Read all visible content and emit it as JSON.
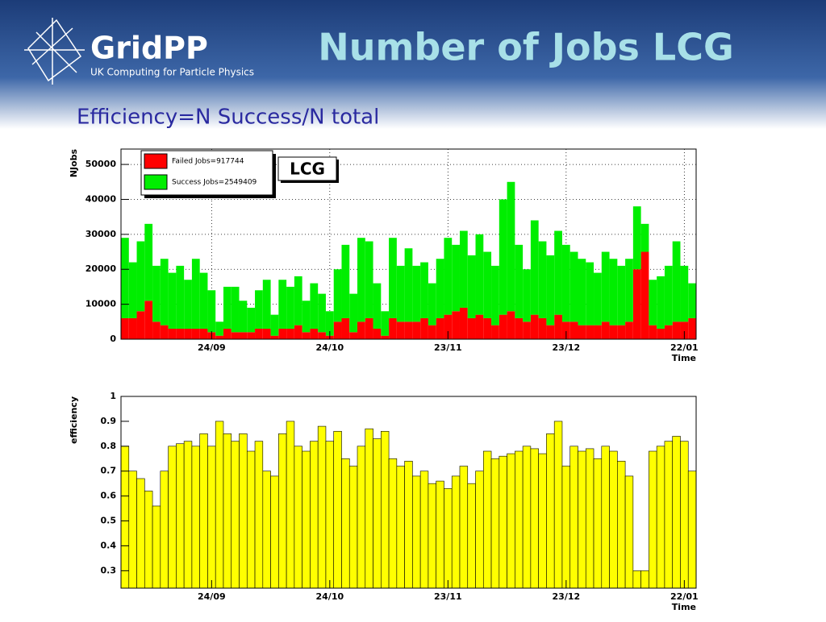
{
  "header": {
    "logo": "GridPP",
    "tagline": "UK Computing for Particle Physics",
    "title": "Number of Jobs LCG",
    "subtitle": "Efficiency=N Success/N total"
  },
  "chart_data": [
    {
      "type": "histogram",
      "stacked": true,
      "bins": [
        0,
        2,
        4,
        6,
        8,
        10,
        12,
        14,
        16,
        18,
        20,
        22,
        24,
        26,
        28,
        30,
        32,
        34,
        36,
        38,
        40,
        42,
        44,
        46,
        48,
        50,
        52,
        54,
        56,
        58,
        60,
        62,
        64,
        66,
        68,
        70,
        72,
        74,
        76,
        78,
        80,
        82,
        84,
        86,
        88,
        90,
        92,
        94,
        96,
        98,
        100,
        102,
        104,
        106,
        108,
        110,
        112,
        114,
        116,
        118,
        120,
        122,
        124,
        126,
        128,
        130,
        132,
        134,
        136,
        138,
        140,
        142,
        144,
        146
      ],
      "series": [
        {
          "name": "Failed Jobs=917744",
          "color": "#ff0000",
          "values": [
            6000,
            6000,
            8000,
            11000,
            5000,
            4000,
            3000,
            3000,
            3000,
            3000,
            3000,
            2000,
            1000,
            3000,
            2000,
            2000,
            2000,
            3000,
            3000,
            1000,
            3000,
            3000,
            4000,
            2000,
            3000,
            2000,
            1000,
            5000,
            6000,
            2000,
            5000,
            6000,
            3000,
            1000,
            6000,
            5000,
            5000,
            5000,
            6000,
            4000,
            6000,
            7000,
            8000,
            9000,
            6000,
            7000,
            6000,
            4000,
            7000,
            8000,
            6000,
            5000,
            7000,
            6000,
            4000,
            7000,
            5000,
            5000,
            4000,
            4000,
            4000,
            5000,
            4000,
            4000,
            5000,
            20000,
            25000,
            4000,
            3000,
            4000,
            5000,
            5000,
            6000
          ]
        },
        {
          "name": "Success Jobs=2549409",
          "color": "#00ee00",
          "values": [
            23000,
            16000,
            20000,
            22000,
            16000,
            19000,
            16000,
            18000,
            14000,
            20000,
            16000,
            12000,
            4000,
            12000,
            13000,
            9000,
            7000,
            11000,
            14000,
            6000,
            14000,
            12000,
            14000,
            9000,
            13000,
            11000,
            7000,
            15000,
            21000,
            11000,
            24000,
            22000,
            13000,
            7000,
            23000,
            16000,
            21000,
            16000,
            16000,
            12000,
            17000,
            22000,
            19000,
            22000,
            18000,
            23000,
            19000,
            17000,
            33000,
            37000,
            21000,
            15000,
            27000,
            22000,
            20000,
            24000,
            22000,
            20000,
            19000,
            18000,
            15000,
            20000,
            19000,
            17000,
            18000,
            18000,
            8000,
            13000,
            15000,
            17000,
            23000,
            16000,
            10000
          ]
        }
      ],
      "xlim": [
        0,
        146
      ],
      "xticks": [
        {
          "value": 23,
          "label": "24/09"
        },
        {
          "value": 53,
          "label": "24/10"
        },
        {
          "value": 83,
          "label": "23/11"
        },
        {
          "value": 113,
          "label": "23/12"
        },
        {
          "value": 143,
          "label": "22/01"
        }
      ],
      "ylim": [
        0,
        54400
      ],
      "yticks": [
        0,
        10000,
        20000,
        30000,
        40000,
        50000
      ],
      "xlabel": "Time",
      "ylabel": "NJobs",
      "annotation": "LCG",
      "grid": true
    },
    {
      "type": "histogram",
      "bins": [
        0,
        2,
        4,
        6,
        8,
        10,
        12,
        14,
        16,
        18,
        20,
        22,
        24,
        26,
        28,
        30,
        32,
        34,
        36,
        38,
        40,
        42,
        44,
        46,
        48,
        50,
        52,
        54,
        56,
        58,
        60,
        62,
        64,
        66,
        68,
        70,
        72,
        74,
        76,
        78,
        80,
        82,
        84,
        86,
        88,
        90,
        92,
        94,
        96,
        98,
        100,
        102,
        104,
        106,
        108,
        110,
        112,
        114,
        116,
        118,
        120,
        122,
        124,
        126,
        128,
        130,
        132,
        134,
        136,
        138,
        140,
        142,
        144,
        146
      ],
      "values": [
        0.8,
        0.7,
        0.67,
        0.62,
        0.56,
        0.7,
        0.8,
        0.81,
        0.82,
        0.8,
        0.85,
        0.8,
        0.9,
        0.85,
        0.82,
        0.85,
        0.78,
        0.82,
        0.7,
        0.68,
        0.85,
        0.9,
        0.8,
        0.78,
        0.82,
        0.88,
        0.82,
        0.86,
        0.75,
        0.72,
        0.8,
        0.87,
        0.83,
        0.86,
        0.75,
        0.72,
        0.74,
        0.68,
        0.7,
        0.65,
        0.66,
        0.63,
        0.68,
        0.72,
        0.65,
        0.7,
        0.78,
        0.75,
        0.76,
        0.77,
        0.78,
        0.8,
        0.79,
        0.77,
        0.85,
        0.9,
        0.72,
        0.8,
        0.78,
        0.79,
        0.75,
        0.8,
        0.78,
        0.74,
        0.68,
        0.3,
        0.3,
        0.78,
        0.8,
        0.82,
        0.84,
        0.82,
        0.7
      ],
      "color": "#ffff00",
      "xlim": [
        0,
        146
      ],
      "xticks": [
        {
          "value": 23,
          "label": "24/09"
        },
        {
          "value": 53,
          "label": "24/10"
        },
        {
          "value": 83,
          "label": "23/11"
        },
        {
          "value": 113,
          "label": "23/12"
        },
        {
          "value": 143,
          "label": "22/01"
        }
      ],
      "ylim": [
        0.23,
        1
      ],
      "yticks": [
        0.3,
        0.4,
        0.5,
        0.6,
        0.7,
        0.8,
        0.9,
        1
      ],
      "xlabel": "Time",
      "ylabel": "efficiency"
    }
  ]
}
